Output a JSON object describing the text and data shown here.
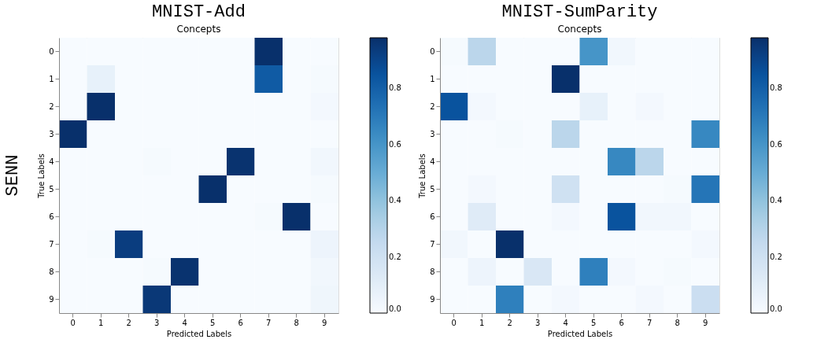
{
  "chart_data": [
    {
      "type": "heatmap",
      "title": "MNIST-Add",
      "subtitle": "Concepts",
      "xlabel": "Predicted Labels",
      "ylabel": "True Labels",
      "annotations": [
        "SENN"
      ],
      "categories": [
        "0",
        "1",
        "2",
        "3",
        "4",
        "5",
        "6",
        "7",
        "8",
        "9"
      ],
      "y_categories": [
        "0",
        "1",
        "2",
        "3",
        "4",
        "5",
        "6",
        "7",
        "8",
        "9"
      ],
      "cells": [
        [
          0,
          0,
          0,
          0,
          0,
          0,
          0,
          0.98,
          0,
          0
        ],
        [
          0,
          0.08,
          0,
          0,
          0,
          0,
          0,
          0.82,
          0,
          0.01
        ],
        [
          0,
          0.98,
          0,
          0,
          0,
          0,
          0,
          0,
          0,
          0.02
        ],
        [
          0.98,
          0,
          0,
          0,
          0,
          0,
          0,
          0,
          0,
          0
        ],
        [
          0,
          0,
          0,
          0.01,
          0,
          0,
          0.97,
          0,
          0,
          0.03
        ],
        [
          0,
          0,
          0,
          0,
          0,
          0.98,
          0,
          0,
          0,
          0.01
        ],
        [
          0,
          0,
          0,
          0,
          0,
          0,
          0,
          0.01,
          0.98,
          0
        ],
        [
          0,
          0.01,
          0.93,
          0,
          0,
          0,
          0,
          0,
          0,
          0.05
        ],
        [
          0,
          0,
          0,
          0.01,
          0.97,
          0,
          0,
          0,
          0,
          0.03
        ],
        [
          0,
          0,
          0,
          0.95,
          0,
          0,
          0,
          0,
          0,
          0.04
        ]
      ],
      "clim": [
        0,
        0.98
      ],
      "cticks": [
        {
          "value": 0,
          "label": "0.0"
        },
        0.2,
        0.4,
        0.6,
        0.8
      ],
      "grid": false
    },
    {
      "type": "heatmap",
      "title": "MNIST-SumParity",
      "subtitle": "Concepts",
      "xlabel": "Predicted Labels",
      "ylabel": "True Labels",
      "categories": [
        "0",
        "1",
        "2",
        "3",
        "4",
        "5",
        "6",
        "7",
        "8",
        "9"
      ],
      "y_categories": [
        "0",
        "1",
        "2",
        "3",
        "4",
        "5",
        "6",
        "7",
        "8",
        "9"
      ],
      "cells": [
        [
          0.01,
          0.28,
          0,
          0,
          0,
          0.6,
          0.03,
          0,
          0,
          0
        ],
        [
          0,
          0,
          0,
          0,
          0.98,
          0,
          0,
          0,
          0,
          0
        ],
        [
          0.85,
          0.02,
          0,
          0,
          0,
          0.08,
          0,
          0.02,
          0,
          0
        ],
        [
          0,
          0,
          0.01,
          0,
          0.28,
          0,
          0,
          0,
          0,
          0.65
        ],
        [
          0,
          0,
          0,
          0,
          0,
          0,
          0.65,
          0.28,
          0,
          0
        ],
        [
          0,
          0.02,
          0,
          0,
          0.2,
          0,
          0,
          0,
          0.01,
          0.72
        ],
        [
          0,
          0.12,
          0,
          0,
          0.02,
          0,
          0.85,
          0.03,
          0.03,
          0
        ],
        [
          0.03,
          0,
          0.98,
          0,
          0,
          0,
          0,
          0,
          0,
          0.02
        ],
        [
          0,
          0.05,
          0,
          0.15,
          0,
          0.68,
          0.02,
          0,
          0.01,
          0
        ],
        [
          0,
          0,
          0.68,
          0,
          0.02,
          0,
          0,
          0.02,
          0,
          0.22
        ]
      ],
      "clim": [
        0,
        0.98
      ],
      "cticks": [
        {
          "value": 0,
          "label": "0.0"
        },
        0.2,
        0.4,
        0.6,
        0.8
      ],
      "grid": false
    }
  ]
}
